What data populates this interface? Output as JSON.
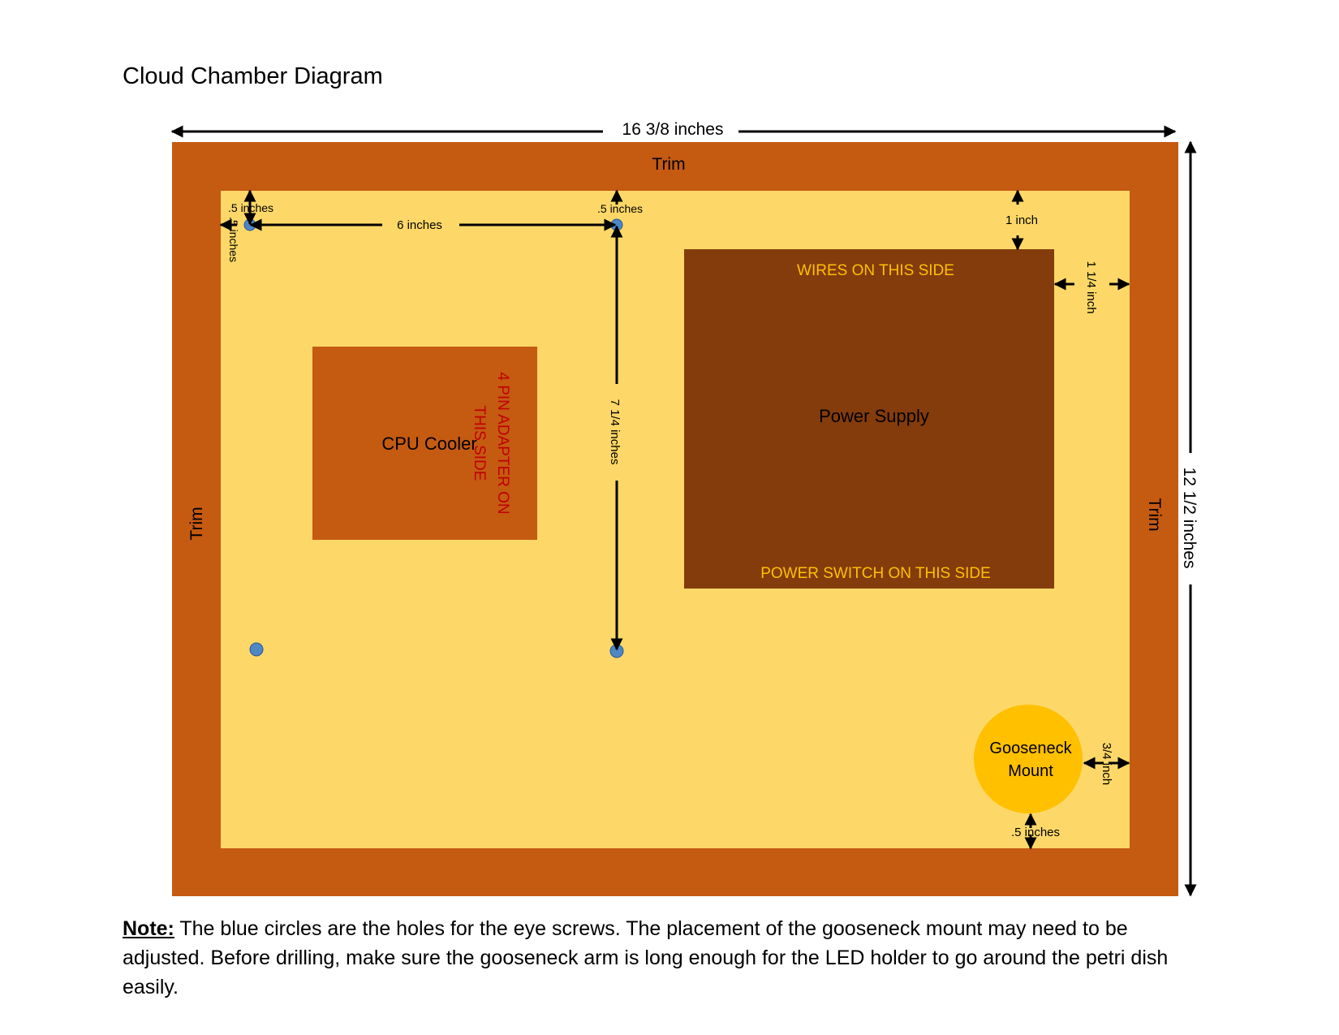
{
  "title": "Cloud Chamber Diagram",
  "colors": {
    "trim": "#c55a11",
    "board": "#fdd868",
    "cpu_cooler": "#c55a11",
    "power_supply": "#843c0c",
    "gooseneck": "#ffc000",
    "eye_screw_hole": "#4e87c4",
    "adapter_label": "#c00000",
    "psu_label": "#ffc000"
  },
  "dimensions": {
    "overall_width": "16 3/8 inches",
    "overall_height": "12 1/2 inches",
    "hole_top_offset": ".5 inches",
    "hole_left_offset": ".5 inches",
    "hole_spacing_h": "6 inches",
    "hole_top_offset_2": ".5 inches",
    "hole_spacing_v": "7 1/4 inches",
    "psu_top_offset": "1 inch",
    "psu_right_offset": "1 1/4 inch",
    "gooseneck_right_offset": "3/4 inch",
    "gooseneck_bottom_offset": ".5 inches"
  },
  "labels": {
    "trim_top": "Trim",
    "trim_left": "Trim",
    "trim_right": "Trim",
    "cpu_cooler": "CPU Cooler",
    "adapter_line1": "4 PIN ADAPTER ON",
    "adapter_line2": "THIS SIDE",
    "power_supply": "Power Supply",
    "wires": "WIRES ON THIS SIDE",
    "power_switch": "POWER SWITCH ON THIS SIDE",
    "gooseneck_line1": "Gooseneck",
    "gooseneck_line2": "Mount"
  },
  "note": {
    "label": "Note:",
    "text": " The blue circles are the holes for the eye screws. The placement of the gooseneck mount may need to be adjusted. Before drilling, make sure the gooseneck arm is long enough for the LED holder to go around the petri dish easily."
  }
}
